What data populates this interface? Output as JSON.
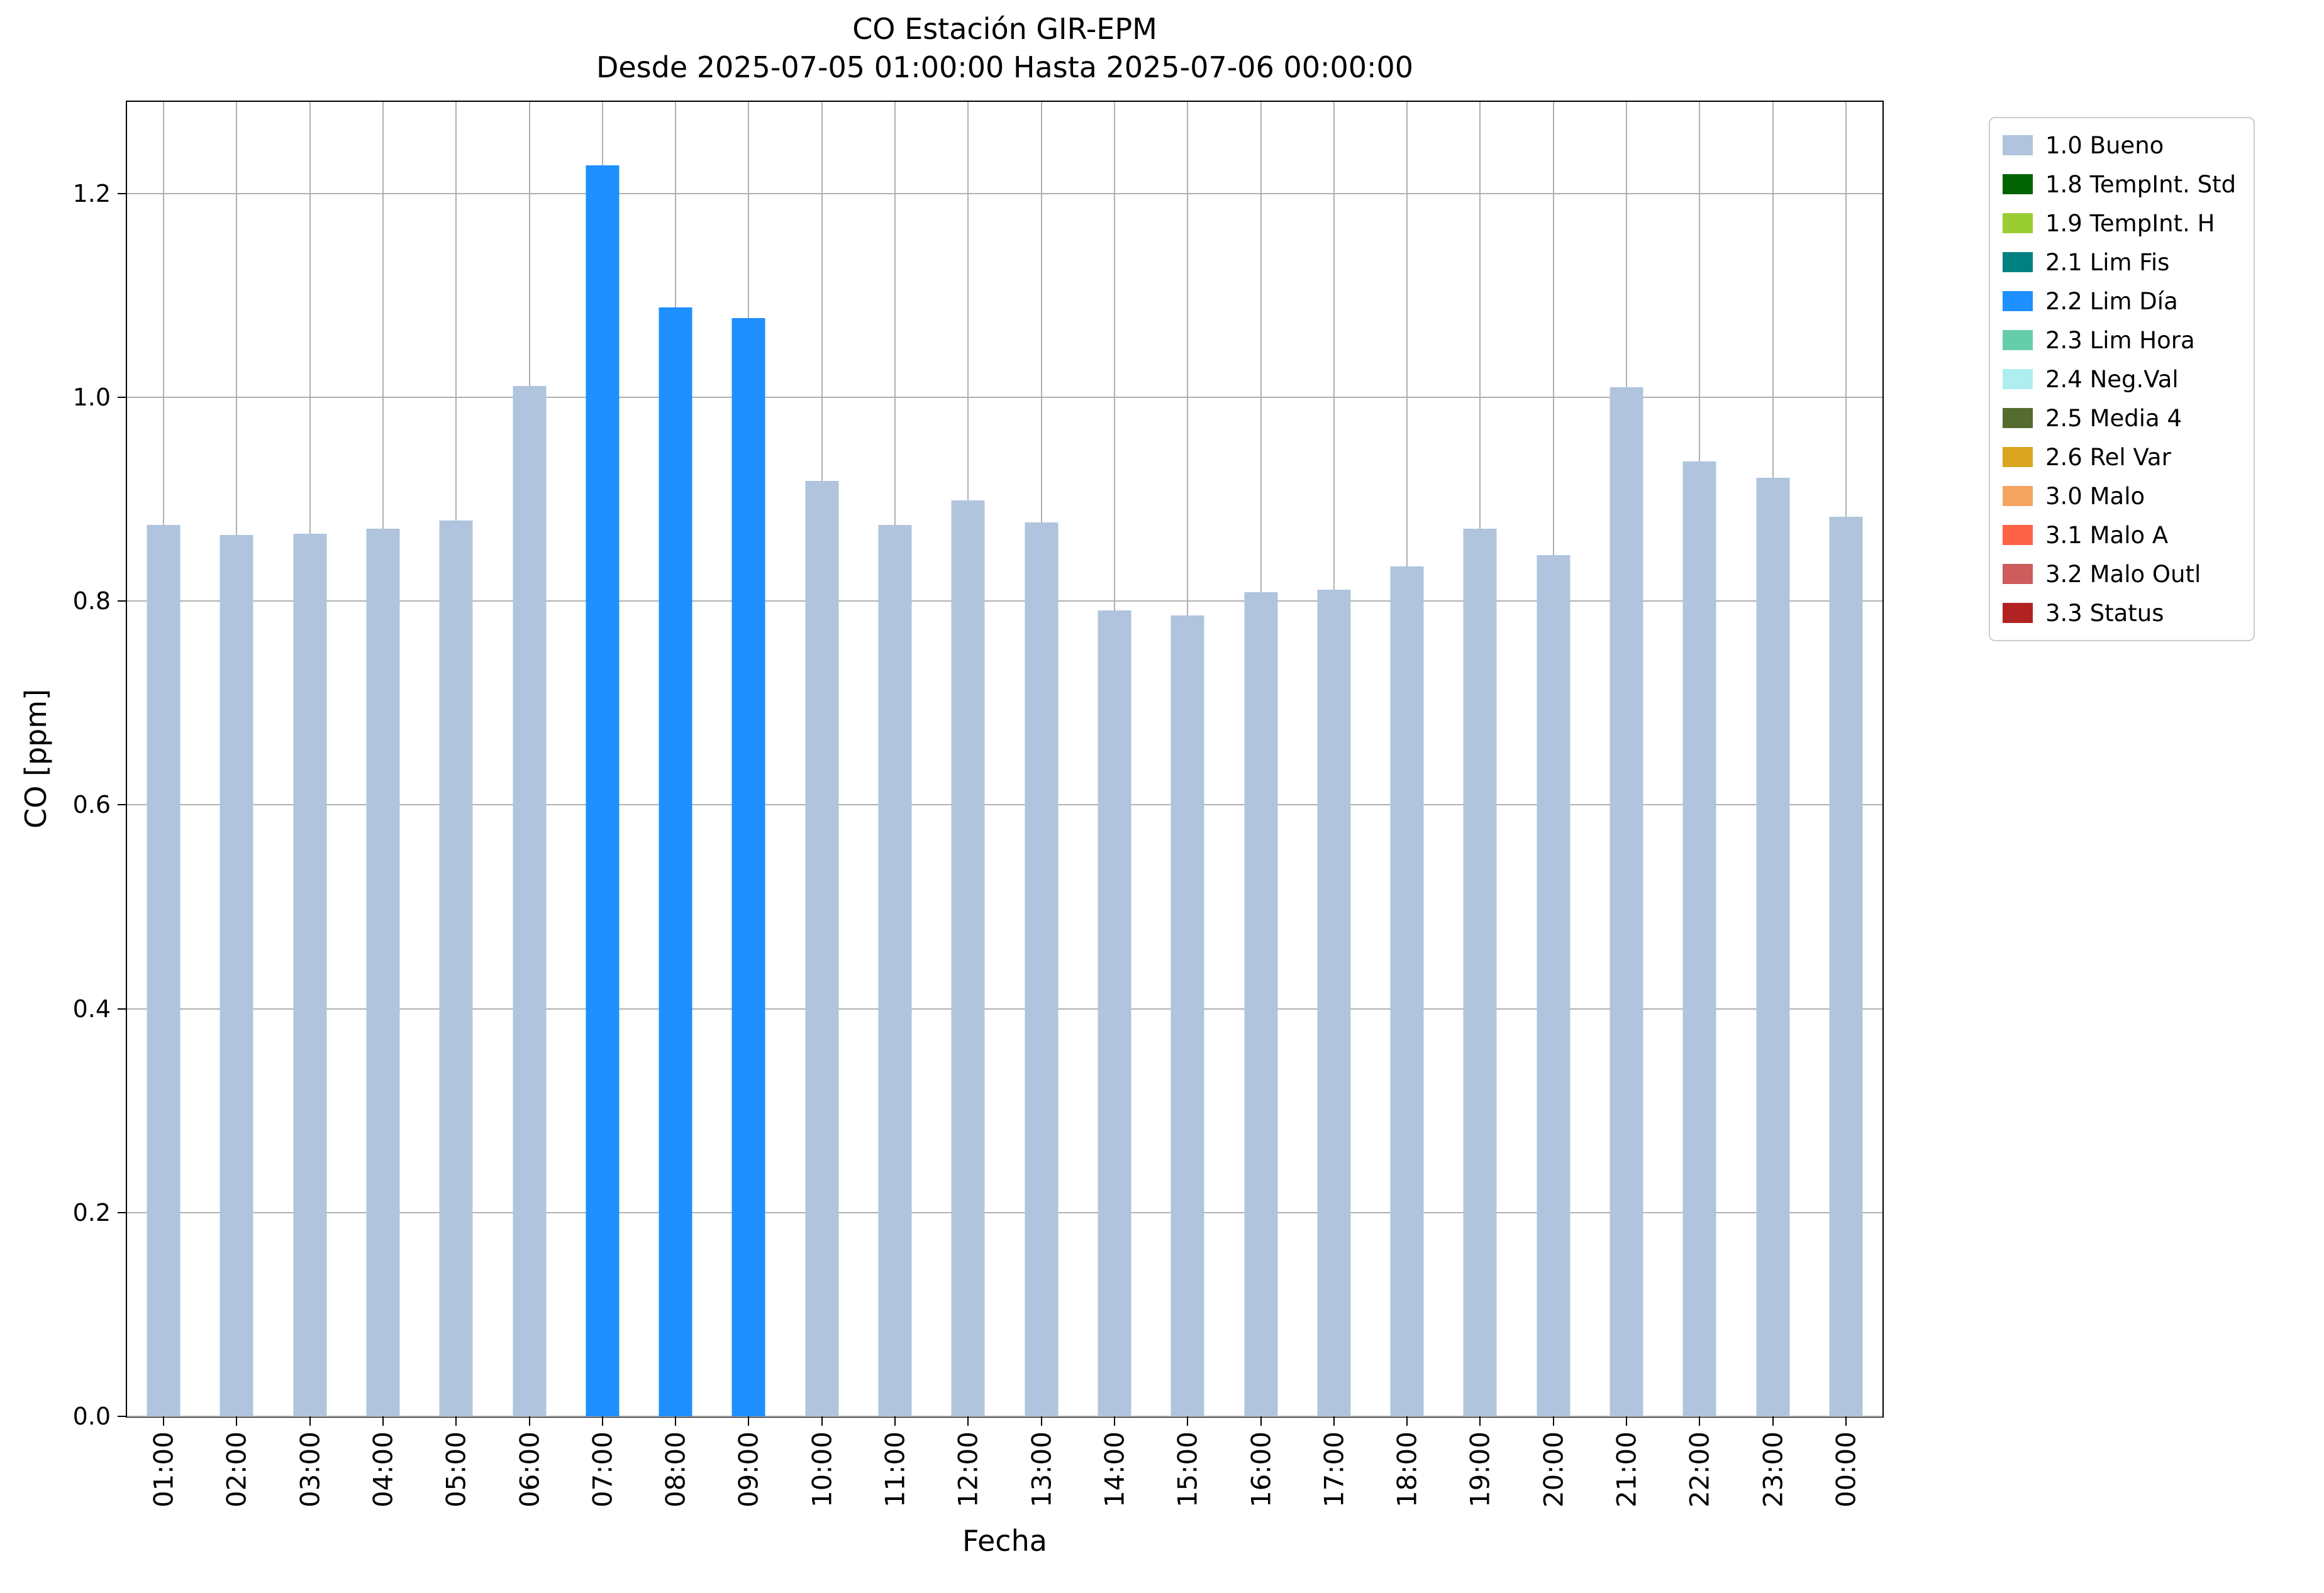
{
  "chart_data": {
    "type": "bar",
    "title": "CO Estación GIR-EPM",
    "subtitle": "Desde 2025-07-05 01:00:00 Hasta 2025-07-06 00:00:00",
    "xlabel": "Fecha",
    "ylabel": "CO [ppm]",
    "ylim": [
      0,
      1.29
    ],
    "yticks": [
      0.0,
      0.2,
      0.4,
      0.6,
      0.8,
      1.0,
      1.2
    ],
    "grid": true,
    "grid_color": "#b0b0b0",
    "background_color": "#ffffff",
    "categories": [
      "01:00",
      "02:00",
      "03:00",
      "04:00",
      "05:00",
      "06:00",
      "07:00",
      "08:00",
      "09:00",
      "10:00",
      "11:00",
      "12:00",
      "13:00",
      "14:00",
      "15:00",
      "16:00",
      "17:00",
      "18:00",
      "19:00",
      "20:00",
      "21:00",
      "22:00",
      "23:00",
      "00:00"
    ],
    "values": [
      0.875,
      0.865,
      0.866,
      0.871,
      0.879,
      1.011,
      1.228,
      1.088,
      1.078,
      0.918,
      0.875,
      0.899,
      0.877,
      0.791,
      0.786,
      0.809,
      0.811,
      0.834,
      0.871,
      0.845,
      1.01,
      0.937,
      0.921,
      0.883
    ],
    "bar_levels": [
      "1.0 Bueno",
      "1.0 Bueno",
      "1.0 Bueno",
      "1.0 Bueno",
      "1.0 Bueno",
      "1.0 Bueno",
      "2.2 Lim Día",
      "2.2 Lim Día",
      "2.2 Lim Día",
      "1.0 Bueno",
      "1.0 Bueno",
      "1.0 Bueno",
      "1.0 Bueno",
      "1.0 Bueno",
      "1.0 Bueno",
      "1.0 Bueno",
      "1.0 Bueno",
      "1.0 Bueno",
      "1.0 Bueno",
      "1.0 Bueno",
      "1.0 Bueno",
      "1.0 Bueno",
      "1.0 Bueno",
      "1.0 Bueno"
    ],
    "legend": {
      "position": "outside-top-right",
      "entries": [
        {
          "label": "1.0 Bueno",
          "color": "#b0c4de"
        },
        {
          "label": "1.8 TempInt. Std",
          "color": "#006400"
        },
        {
          "label": "1.9 TempInt. H",
          "color": "#9acd32"
        },
        {
          "label": "2.1 Lim Fis",
          "color": "#008080"
        },
        {
          "label": "2.2 Lim Día",
          "color": "#1e90ff"
        },
        {
          "label": "2.3 Lim Hora",
          "color": "#66cdaa"
        },
        {
          "label": "2.4 Neg.Val",
          "color": "#afeeee"
        },
        {
          "label": "2.5 Media 4",
          "color": "#556b2f"
        },
        {
          "label": "2.6 Rel Var",
          "color": "#daa520"
        },
        {
          "label": "3.0 Malo",
          "color": "#f4a460"
        },
        {
          "label": "3.1 Malo A",
          "color": "#ff6347"
        },
        {
          "label": "3.2 Malo Outl",
          "color": "#cd5c5c"
        },
        {
          "label": "3.3 Status",
          "color": "#b22222"
        }
      ]
    }
  }
}
